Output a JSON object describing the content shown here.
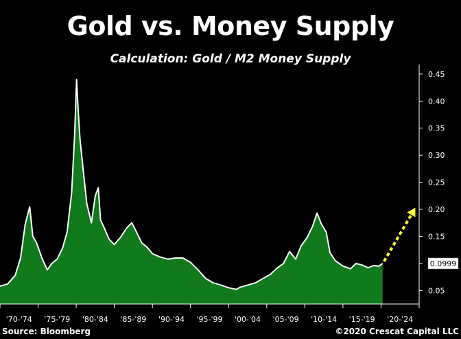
{
  "chart_data": {
    "type": "area",
    "title": "Gold vs. Money Supply",
    "subtitle": "Calculation: Gold / M2 Money Supply",
    "x_tick_labels": [
      "'70-'74",
      "'75-'79",
      "'80-'84",
      "'85-'89",
      "'90-'94",
      "'95-'99",
      "'00-'04",
      "'05-'09",
      "'10-'14",
      "'15-'19",
      "'20-'24"
    ],
    "y_tick_labels": [
      "0.05",
      "0.10",
      "0.15",
      "0.20",
      "0.25",
      "0.30",
      "0.35",
      "0.40",
      "0.45"
    ],
    "ylim": [
      0.025,
      0.46
    ],
    "xlim": [
      1970,
      2025
    ],
    "grid": false,
    "last_value_label": "0.0999",
    "series": [
      {
        "x": [
          1970,
          1971,
          1972,
          1972.7,
          1973.3,
          1973.9,
          1974.3,
          1974.8,
          1975.5,
          1976.2,
          1976.8,
          1977.5,
          1978.2,
          1978.8,
          1979.4,
          1979.8,
          1980.05,
          1980.25,
          1980.5,
          1980.9,
          1981.4,
          1982.0,
          1982.5,
          1982.9,
          1983.2,
          1983.7,
          1984.3,
          1985.0,
          1985.8,
          1986.6,
          1987.3,
          1987.9,
          1988.6,
          1989.3,
          1990.0,
          1991.0,
          1992.0,
          1993.0,
          1994.0,
          1995.0,
          1996.0,
          1997.0,
          1998.0,
          1999.0,
          2000.0,
          2001.0,
          2001.5,
          2002.5,
          2003.5,
          2004.5,
          2005.5,
          2006.4,
          2007.2,
          2008.0,
          2008.8,
          2009.5,
          2010.3,
          2011.0,
          2011.6,
          2012.2,
          2012.8,
          2013.3,
          2014.0,
          2015.0,
          2016.0,
          2016.7,
          2017.5,
          2018.3,
          2019.0,
          2019.7,
          2020.2
        ],
        "y": [
          0.058,
          0.062,
          0.078,
          0.11,
          0.172,
          0.205,
          0.15,
          0.138,
          0.11,
          0.088,
          0.1,
          0.108,
          0.128,
          0.158,
          0.23,
          0.34,
          0.44,
          0.385,
          0.33,
          0.275,
          0.21,
          0.175,
          0.225,
          0.24,
          0.18,
          0.165,
          0.145,
          0.135,
          0.148,
          0.165,
          0.175,
          0.158,
          0.138,
          0.13,
          0.118,
          0.112,
          0.108,
          0.11,
          0.11,
          0.102,
          0.088,
          0.072,
          0.064,
          0.06,
          0.055,
          0.052,
          0.056,
          0.06,
          0.064,
          0.072,
          0.08,
          0.092,
          0.1,
          0.122,
          0.108,
          0.132,
          0.148,
          0.168,
          0.193,
          0.172,
          0.158,
          0.12,
          0.105,
          0.095,
          0.09,
          0.1,
          0.097,
          0.092,
          0.096,
          0.095,
          0.0999
        ]
      }
    ],
    "projection_arrow": {
      "from": {
        "x": 2020.4,
        "y": 0.104
      },
      "to": {
        "x": 2024.5,
        "y": 0.203
      }
    }
  },
  "colors": {
    "background": "#000000",
    "area_fill": "#107a1c",
    "line": "#ffffff",
    "arrow": "#ffff33",
    "value_box_bg": "#ffffff",
    "value_box_text": "#000000"
  },
  "footer": {
    "source": "Source: Bloomberg",
    "copyright": "©2020 Crescat Capital LLC"
  }
}
